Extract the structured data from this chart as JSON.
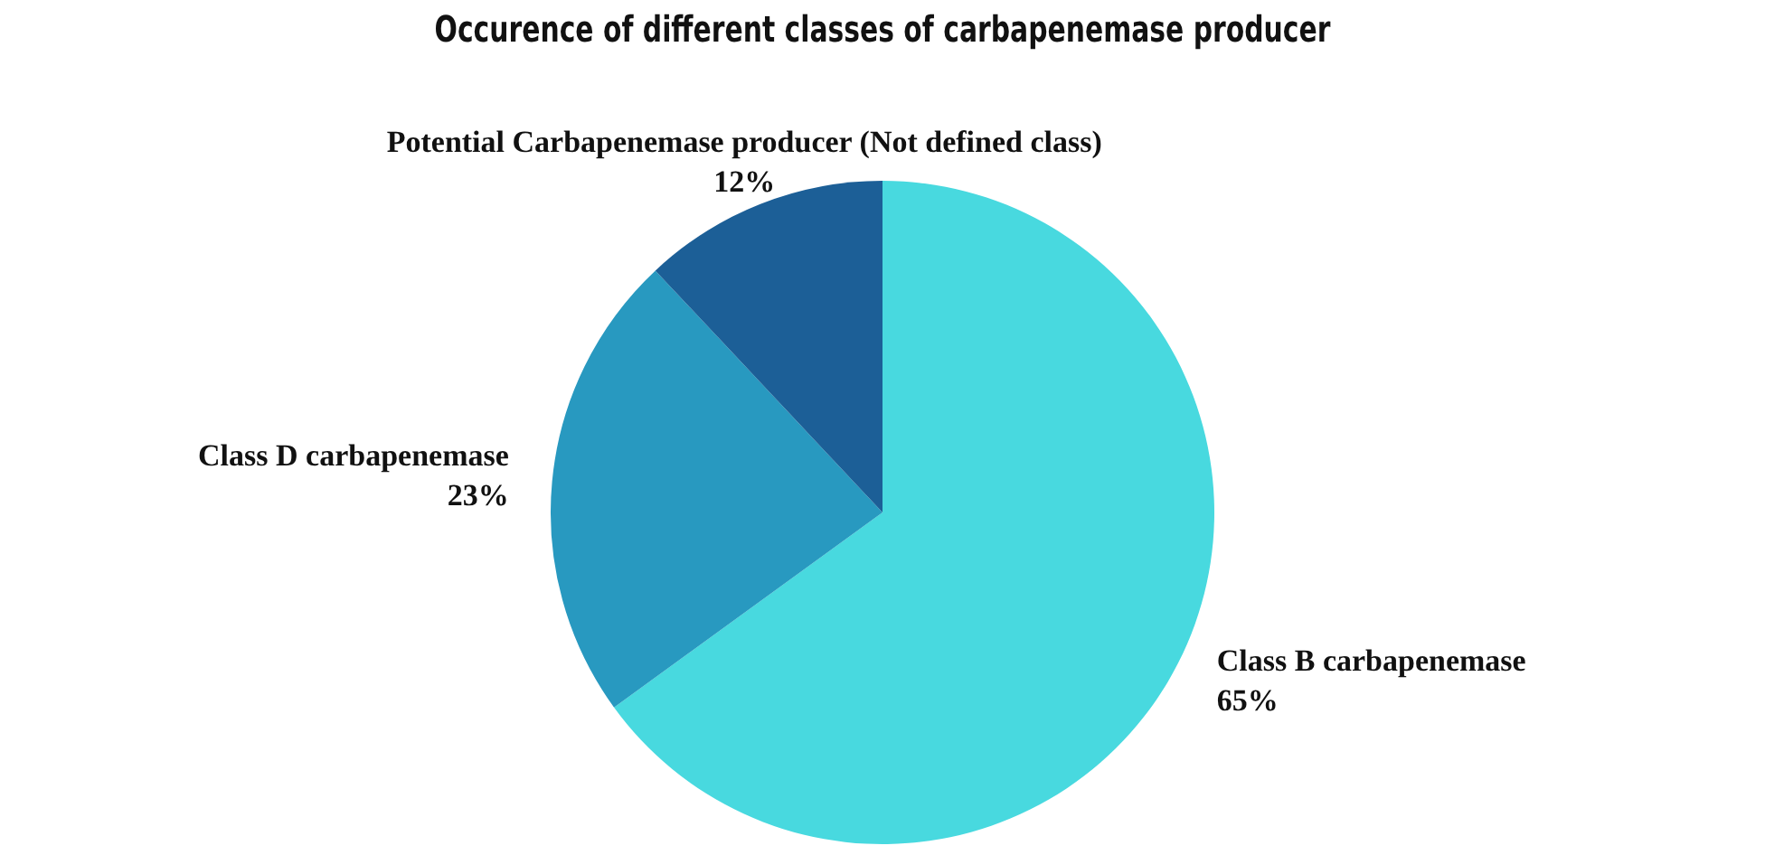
{
  "chart_data": {
    "type": "pie",
    "title": "Occurence of different classes of carbapenemase producer",
    "categories": [
      "Class B carbapenemase",
      "Class D carbapenemase",
      "Potential Carbapenemase producer (Not defined class)"
    ],
    "values": [
      65,
      23,
      12
    ],
    "value_labels": [
      "65%",
      "23%",
      "12%"
    ],
    "colors": [
      "#48d9df",
      "#2899c0",
      "#1c5f97"
    ],
    "legend": false
  }
}
